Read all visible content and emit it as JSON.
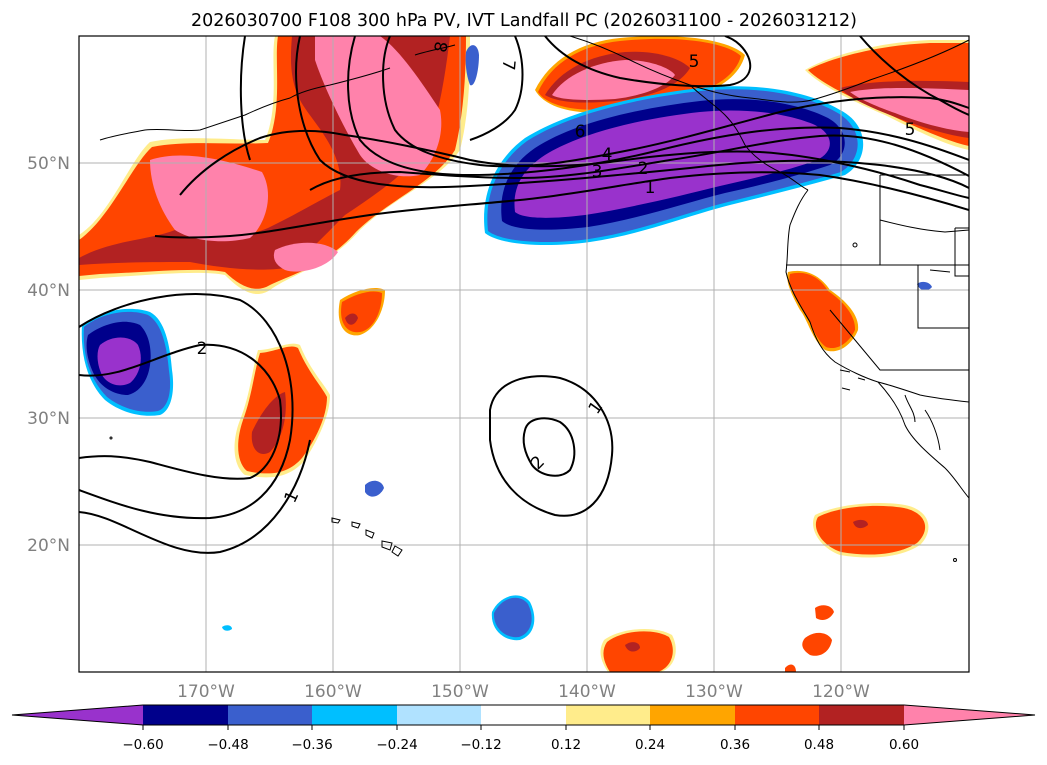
{
  "title": "2026030700 F108 300 hPa PV, IVT Landfall PC (2026031100 - 2026031212)",
  "lat_labels": [
    "50°N",
    "40°N",
    "30°N",
    "20°N"
  ],
  "lon_labels": [
    "170°W",
    "160°W",
    "150°W",
    "140°W",
    "130°W",
    "120°W"
  ],
  "colorbar": {
    "ticks": [
      "−0.60",
      "−0.48",
      "−0.36",
      "−0.24",
      "−0.12",
      "0.12",
      "0.24",
      "0.36",
      "0.48",
      "0.60"
    ],
    "colors": [
      "#9932cc",
      "#00008b",
      "#3a5fcd",
      "#00bfff",
      "#b0e2ff",
      "#ffffff",
      "#ffec8b",
      "#ffa500",
      "#ff4500",
      "#b22222",
      "#ff82ab"
    ]
  },
  "contour_labels": [
    "8",
    "7",
    "6",
    "5",
    "4",
    "3",
    "2",
    "1",
    "5",
    "2",
    "1",
    "1",
    "2"
  ]
}
